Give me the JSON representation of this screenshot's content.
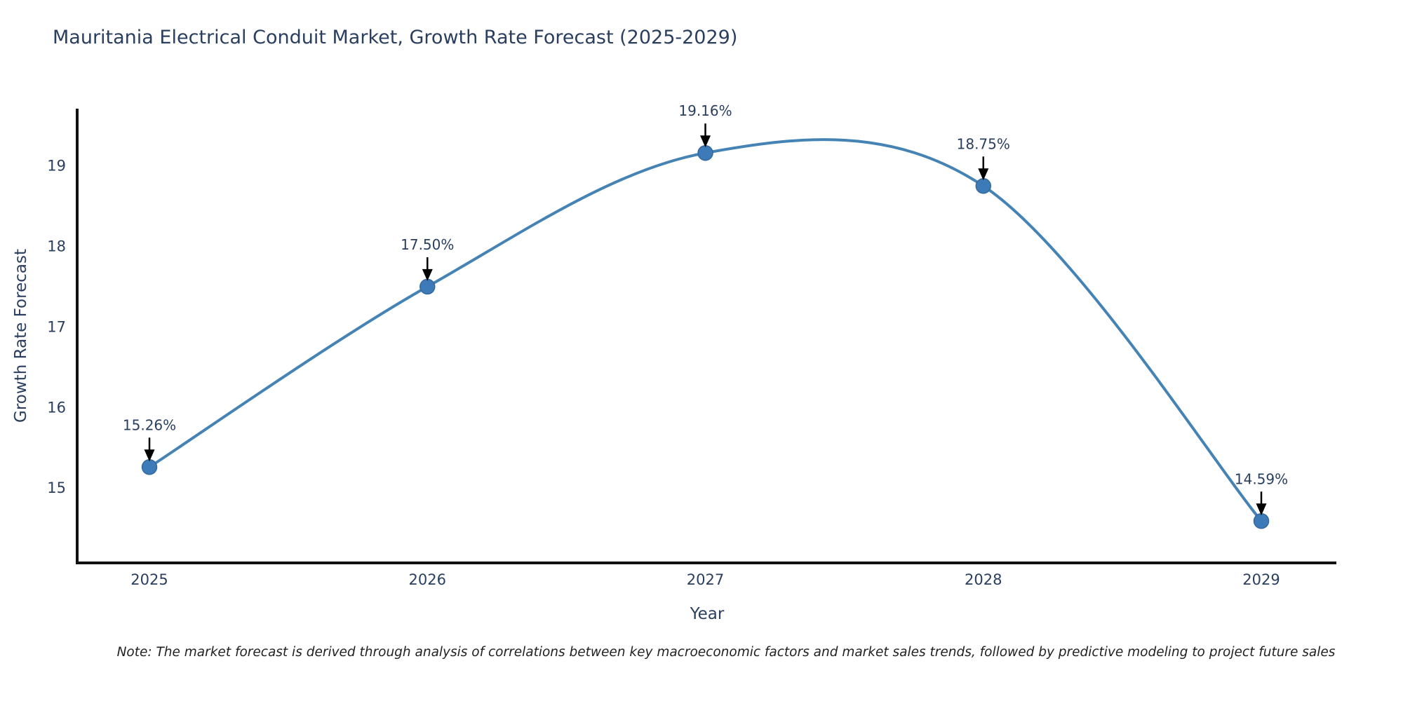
{
  "chart_data": {
    "type": "line",
    "title": "Mauritania Electrical Conduit Market, Growth Rate Forecast (2025-2029)",
    "xlabel": "Year",
    "ylabel": "Growth Rate Forecast",
    "x": [
      2025,
      2026,
      2027,
      2028,
      2029
    ],
    "values": [
      15.26,
      17.5,
      19.16,
      18.75,
      14.59
    ],
    "point_labels": [
      "15.26%",
      "17.50%",
      "19.16%",
      "18.75%",
      "14.59%"
    ],
    "xticks": [
      "2025",
      "2026",
      "2027",
      "2028",
      "2029"
    ],
    "yticks": [
      15,
      16,
      17,
      18,
      19
    ],
    "xlim": [
      2024.74,
      2029.27
    ],
    "ylim": [
      14.07,
      19.71
    ],
    "grid": false,
    "legend": "none",
    "line_shape": "spline",
    "colors": {
      "line": "#4583b5",
      "marker_fill": "#3d7ab8",
      "marker_edge": "#35699c",
      "axis_line": "#111111",
      "chart_text": "#2a3f5f",
      "annotation_text": "#2a3f5f",
      "annotation_arrow": "#000000"
    }
  },
  "note": "Note: The market forecast is derived through analysis of correlations between key macroeconomic factors and market sales trends, followed by predictive modeling to project future sales"
}
